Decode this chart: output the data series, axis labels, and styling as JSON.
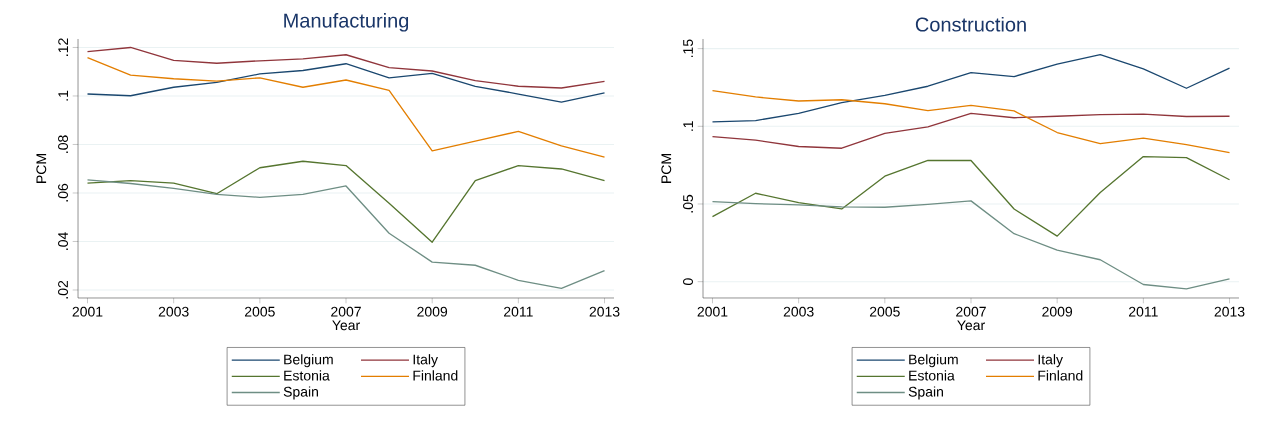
{
  "chart_data": [
    {
      "type": "line",
      "title": "Manufacturing",
      "xlabel": "Year",
      "ylabel": "PCM",
      "x": [
        2001,
        2002,
        2003,
        2004,
        2005,
        2006,
        2007,
        2008,
        2009,
        2010,
        2011,
        2012,
        2013
      ],
      "series": [
        {
          "name": "Belgium",
          "color": "#1a476f",
          "values": [
            0.1008,
            0.1001,
            0.1036,
            0.1056,
            0.1091,
            0.1105,
            0.1133,
            0.1075,
            0.1093,
            0.104,
            0.1008,
            0.0975,
            0.1013
          ]
        },
        {
          "name": "Italy",
          "color": "#90353b",
          "values": [
            0.1183,
            0.12,
            0.1147,
            0.1135,
            0.1145,
            0.1153,
            0.117,
            0.1117,
            0.1103,
            0.1063,
            0.104,
            0.1033,
            0.106
          ]
        },
        {
          "name": "Estonia",
          "color": "#55752f",
          "values": [
            0.0641,
            0.0651,
            0.0641,
            0.0597,
            0.0704,
            0.0731,
            0.0713,
            0.0558,
            0.0397,
            0.0651,
            0.0713,
            0.0699,
            0.0651
          ]
        },
        {
          "name": "Finland",
          "color": "#e37e00",
          "values": [
            0.1158,
            0.1086,
            0.1071,
            0.1061,
            0.1075,
            0.1036,
            0.1066,
            0.1023,
            0.0774,
            0.0814,
            0.0854,
            0.0794,
            0.0748
          ]
        },
        {
          "name": "Spain",
          "color": "#6e8e84",
          "values": [
            0.0654,
            0.0639,
            0.0619,
            0.0594,
            0.0582,
            0.0594,
            0.0629,
            0.0434,
            0.0315,
            0.0302,
            0.024,
            0.0207,
            0.028
          ]
        }
      ],
      "xlim": [
        2000.78,
        2013.22
      ],
      "ylim": [
        0.0167,
        0.1235
      ],
      "xticks": [
        2001,
        2003,
        2005,
        2007,
        2009,
        2011,
        2013
      ],
      "yticks": [
        {
          "value": 0.02,
          "label": ".02"
        },
        {
          "value": 0.04,
          "label": ".04"
        },
        {
          "value": 0.06,
          "label": ".06"
        },
        {
          "value": 0.08,
          "label": ".08"
        },
        {
          "value": 0.1,
          "label": ".1"
        },
        {
          "value": 0.12,
          "label": ".12"
        }
      ],
      "grid": "y",
      "legend": "bottom"
    },
    {
      "type": "line",
      "title": "Construction",
      "xlabel": "Year",
      "ylabel": "PCM",
      "x": [
        2001,
        2002,
        2003,
        2004,
        2005,
        2006,
        2007,
        2008,
        2009,
        2010,
        2011,
        2012,
        2013
      ],
      "series": [
        {
          "name": "Belgium",
          "color": "#1a476f",
          "values": [
            0.1029,
            0.1037,
            0.1083,
            0.1153,
            0.1199,
            0.1258,
            0.1345,
            0.132,
            0.14,
            0.1461,
            0.1369,
            0.1245,
            0.1374
          ]
        },
        {
          "name": "Italy",
          "color": "#90353b",
          "values": [
            0.0934,
            0.0911,
            0.087,
            0.0859,
            0.0954,
            0.0996,
            0.1083,
            0.1055,
            0.1065,
            0.1075,
            0.1078,
            0.1063,
            0.1065
          ]
        },
        {
          "name": "Estonia",
          "color": "#55752f",
          "values": [
            0.0419,
            0.0569,
            0.0509,
            0.0468,
            0.0679,
            0.078,
            0.078,
            0.0468,
            0.0293,
            0.0574,
            0.0805,
            0.0798,
            0.0656
          ]
        },
        {
          "name": "Finland",
          "color": "#e37e00",
          "values": [
            0.123,
            0.1189,
            0.1163,
            0.1171,
            0.1145,
            0.1101,
            0.1135,
            0.1099,
            0.096,
            0.0888,
            0.0924,
            0.0882,
            0.0831
          ]
        },
        {
          "name": "Spain",
          "color": "#6e8e84",
          "values": [
            0.0515,
            0.0502,
            0.0494,
            0.0481,
            0.0479,
            0.0497,
            0.052,
            0.0309,
            0.0203,
            0.0141,
            -0.0018,
            -0.0046,
            0.0018
          ]
        }
      ],
      "xlim": [
        2000.78,
        2013.22
      ],
      "ylim": [
        -0.0105,
        0.1562
      ],
      "xticks": [
        2001,
        2003,
        2005,
        2007,
        2009,
        2011,
        2013
      ],
      "yticks": [
        0,
        {
          "value": 0.05,
          "label": ".05"
        },
        {
          "value": 0.1,
          "label": ".1"
        },
        {
          "value": 0.15,
          "label": ".15"
        }
      ],
      "grid": "y",
      "legend": "bottom"
    }
  ]
}
